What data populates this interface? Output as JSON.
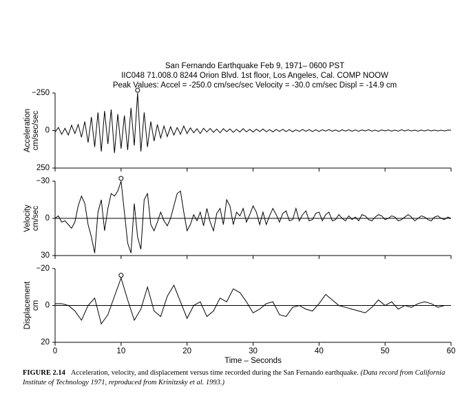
{
  "title_lines": [
    "San Fernando Earthquake   Feb 9, 1971– 0600 PST",
    "IIC048   71.008.0   8244 Orion Blvd. 1st floor, Los Angeles, Cal.  COMP NOOW",
    "Peak Values:  Accel = -250.0 cm/sec/sec    Velocity = -30.0 cm/sec    Displ = -14.9 cm"
  ],
  "chart_data": [
    {
      "type": "line",
      "ylabel": [
        "Acceleration",
        "cm/sec/sec"
      ],
      "color": "#000000",
      "zero_line": false,
      "xlim": [
        0,
        60
      ],
      "ylim": [
        250,
        -250
      ],
      "yticks": [
        {
          "value": -250,
          "label": "−250"
        },
        0,
        250
      ],
      "x": [
        0,
        0.5,
        1,
        1.5,
        2,
        2.5,
        3,
        3.5,
        4,
        4.5,
        5,
        5.5,
        6,
        6.5,
        7,
        7.5,
        8,
        8.5,
        9,
        9.5,
        10,
        10.5,
        11,
        11.5,
        12,
        12.5,
        13,
        13.5,
        14,
        14.5,
        15,
        15.5,
        16,
        16.5,
        17,
        17.5,
        18,
        18.5,
        19,
        19.5,
        20,
        20.5,
        21,
        21.5,
        22,
        22.5,
        23,
        23.5,
        24,
        24.5,
        25,
        25.5,
        26,
        26.5,
        27,
        27.5,
        28,
        28.5,
        29,
        29.5,
        30,
        30.5,
        31,
        31.5,
        32,
        32.5,
        33,
        33.5,
        34,
        34.5,
        35,
        35.5,
        36,
        36.5,
        37,
        37.5,
        38,
        38.5,
        39,
        39.5,
        40,
        40.5,
        41,
        41.5,
        42,
        42.5,
        43,
        43.5,
        44,
        44.5,
        45,
        45.5,
        46,
        46.5,
        47,
        47.5,
        48,
        48.5,
        49,
        49.5,
        50,
        50.5,
        51,
        51.5,
        52,
        52.5,
        53,
        53.5,
        54,
        54.5,
        55,
        55.5,
        56,
        56.5,
        57,
        57.5,
        58,
        58.5,
        59,
        59.5,
        60
      ],
      "values": [
        10,
        -20,
        25,
        -15,
        30,
        -35,
        20,
        -40,
        45,
        -60,
        80,
        -90,
        110,
        -120,
        140,
        -130,
        90,
        -140,
        150,
        -110,
        120,
        -100,
        130,
        -150,
        100,
        -250,
        140,
        -120,
        110,
        -60,
        70,
        -40,
        50,
        -30,
        40,
        -25,
        30,
        -20,
        25,
        -30,
        20,
        -18,
        15,
        -12,
        20,
        -15,
        10,
        -14,
        12,
        -10,
        15,
        -12,
        8,
        -10,
        12,
        -8,
        10,
        -12,
        9,
        -8,
        10,
        -9,
        7,
        -10,
        8,
        -6,
        9,
        -7,
        6,
        -8,
        7,
        -6,
        8,
        -5,
        6,
        -7,
        5,
        -6,
        7,
        -5,
        6,
        -5,
        4,
        -6,
        5,
        -4,
        6,
        -5,
        4,
        -5,
        5,
        -4,
        5,
        -4,
        3,
        -5,
        4,
        -3,
        5,
        -4,
        3,
        -4,
        4,
        -3,
        4,
        -5,
        3,
        -4,
        3,
        -3,
        4,
        -3,
        3,
        -4,
        2,
        -3,
        3,
        -2,
        3,
        -3,
        -2
      ]
    },
    {
      "type": "line",
      "ylabel": [
        "Velocity",
        "cm/sec"
      ],
      "color": "#000000",
      "zero_line": true,
      "xlim": [
        0,
        60
      ],
      "ylim": [
        30,
        -30
      ],
      "yticks": [
        {
          "value": -30,
          "label": "−30"
        },
        0,
        30
      ],
      "x": [
        0,
        0.5,
        1,
        1.5,
        2,
        2.5,
        3,
        3.5,
        4,
        4.5,
        5,
        5.5,
        6,
        6.5,
        7,
        7.5,
        8,
        8.5,
        9,
        9.5,
        10,
        10.5,
        11,
        11.5,
        12,
        12.5,
        13,
        13.5,
        14,
        14.5,
        15,
        15.5,
        16,
        16.5,
        17,
        17.5,
        18,
        18.5,
        19,
        19.5,
        20,
        20.5,
        21,
        21.5,
        22,
        22.5,
        23,
        23.5,
        24,
        24.5,
        25,
        25.5,
        26,
        26.5,
        27,
        27.5,
        28,
        28.5,
        29,
        29.5,
        30,
        30.5,
        31,
        31.5,
        32,
        32.5,
        33,
        33.5,
        34,
        34.5,
        35,
        35.5,
        36,
        36.5,
        37,
        37.5,
        38,
        38.5,
        39,
        39.5,
        40,
        40.5,
        41,
        41.5,
        42,
        42.5,
        43,
        43.5,
        44,
        44.5,
        45,
        45.5,
        46,
        46.5,
        47,
        47.5,
        48,
        48.5,
        49,
        49.5,
        50,
        50.5,
        51,
        51.5,
        52,
        52.5,
        53,
        53.5,
        54,
        54.5,
        55,
        55.5,
        56,
        56.5,
        57,
        57.5,
        58,
        58.5,
        59,
        59.5,
        60
      ],
      "values": [
        0,
        -2,
        3,
        2,
        5,
        8,
        3,
        -10,
        -18,
        -12,
        5,
        15,
        28,
        -5,
        -15,
        10,
        -8,
        -20,
        -18,
        -22,
        -30,
        -5,
        20,
        28,
        -12,
        15,
        25,
        -15,
        -20,
        5,
        10,
        3,
        -5,
        2,
        6,
        0,
        -10,
        -20,
        -22,
        -5,
        10,
        5,
        -3,
        2,
        -5,
        6,
        -8,
        3,
        10,
        -4,
        -8,
        5,
        -15,
        -10,
        5,
        -5,
        -2,
        -8,
        3,
        -3,
        -10,
        -5,
        5,
        -5,
        5,
        -2,
        -8,
        -3,
        3,
        -4,
        -6,
        2,
        1,
        -8,
        2,
        -3,
        -6,
        2,
        1,
        -4,
        -5,
        2,
        -3,
        -5,
        2,
        1,
        -3,
        0,
        2,
        -2,
        1,
        -1,
        2,
        -3,
        -2,
        1,
        2,
        -1,
        -3,
        -2,
        1,
        0,
        -2,
        -1,
        2,
        1,
        -1,
        -3,
        -1,
        2,
        0,
        -2,
        -1,
        1,
        2,
        -1,
        -2,
        0,
        1,
        -1,
        0
      ]
    },
    {
      "type": "line",
      "ylabel": [
        "Displacement",
        "cm"
      ],
      "xlabel": "Time – Seconds",
      "color": "#000000",
      "zero_line": true,
      "xlim": [
        0,
        60
      ],
      "ylim": [
        20,
        -20
      ],
      "yticks": [
        {
          "value": -20,
          "label": "−20"
        },
        0,
        20
      ],
      "xticks": [
        0,
        10,
        20,
        30,
        40,
        50,
        60
      ],
      "x": [
        0,
        1,
        2,
        3,
        4,
        5,
        6,
        7,
        8,
        9,
        10,
        11,
        12,
        13,
        14,
        15,
        16,
        17,
        18,
        19,
        20,
        21,
        22,
        23,
        24,
        25,
        26,
        27,
        28,
        29,
        30,
        31,
        32,
        33,
        34,
        35,
        36,
        37,
        38,
        39,
        40,
        41,
        42,
        43,
        44,
        45,
        46,
        47,
        48,
        49,
        50,
        51,
        52,
        53,
        54,
        55,
        56,
        57,
        58,
        59,
        60
      ],
      "values": [
        -1,
        -1,
        0,
        3,
        8,
        0,
        -4,
        10,
        5,
        -5,
        -14.9,
        -3,
        8,
        2,
        -10,
        3,
        6,
        -5,
        -11,
        -2,
        7,
        0,
        -2,
        6,
        3,
        -4,
        -2,
        -9,
        -7,
        -2,
        4,
        2,
        -1,
        -2,
        5,
        6,
        1,
        0,
        2,
        3,
        -1,
        -6,
        -3,
        0,
        1,
        2,
        3,
        4,
        1,
        -3,
        0,
        -2,
        2,
        0,
        1,
        -1,
        -2,
        -1,
        1,
        0,
        0
      ]
    }
  ],
  "caption": {
    "label": "FIGURE 2.14",
    "text": "Acceleration, velocity, and displacement versus time recorded during the San Fernando earthquake.",
    "source": "(Data record from California Institute of Technology 1971, reproduced from Krinitzsky et al. 1993.)"
  }
}
